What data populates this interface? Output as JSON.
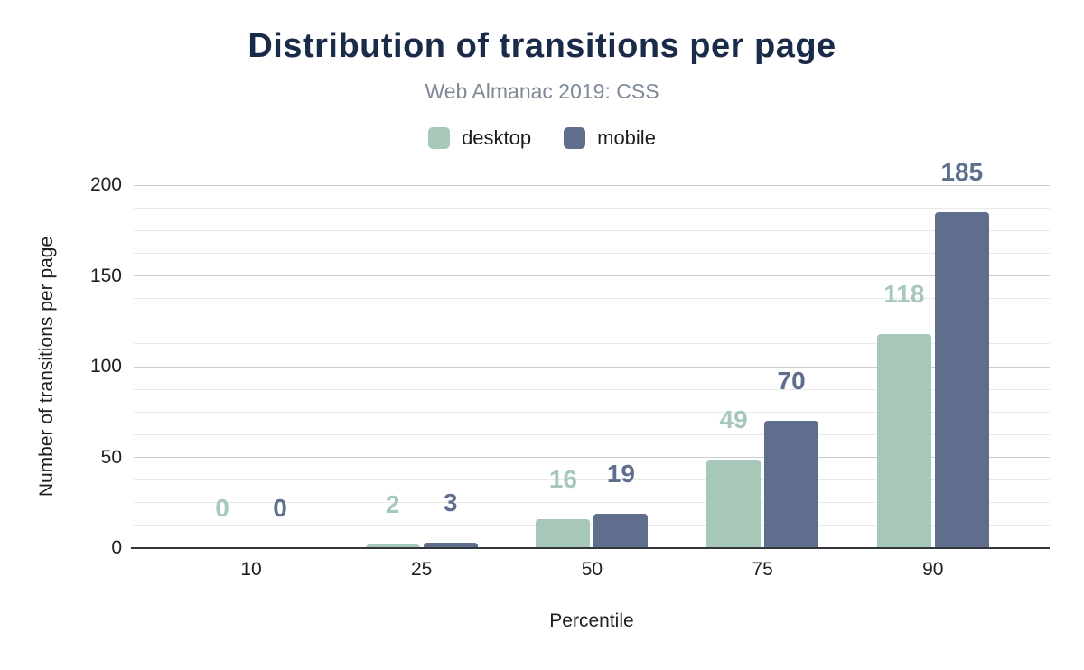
{
  "title": "Distribution of transitions per page",
  "subtitle": "Web Almanac 2019: CSS",
  "legend": {
    "items": [
      {
        "label": "desktop",
        "color": "#a7c8b9"
      },
      {
        "label": "mobile",
        "color": "#5e6e8c"
      }
    ]
  },
  "chart_data": {
    "type": "bar",
    "title": "Distribution of transitions per page",
    "subtitle": "Web Almanac 2019: CSS",
    "categories": [
      "10",
      "25",
      "50",
      "75",
      "90"
    ],
    "series": [
      {
        "name": "desktop",
        "color": "#a7c8b9",
        "values": [
          0,
          2,
          16,
          49,
          118
        ]
      },
      {
        "name": "mobile",
        "color": "#5e6e8c",
        "values": [
          0,
          3,
          19,
          70,
          185
        ]
      }
    ],
    "xlabel": "Percentile",
    "ylabel": "Number of transitions per page",
    "ylim": [
      0,
      200
    ],
    "y_major_ticks": [
      0,
      50,
      100,
      150,
      200
    ],
    "y_minor_step": 12.5,
    "grid": true,
    "data_labels": true,
    "legend_position": "top",
    "colors": {
      "title": "#1a2b49",
      "subtitle": "#7e8a97",
      "axis_text": "#1c1f23",
      "major_grid": "#cccccc",
      "minor_grid": "#e8e8e8",
      "axis_line": "#33373b",
      "background": "#ffffff"
    }
  }
}
